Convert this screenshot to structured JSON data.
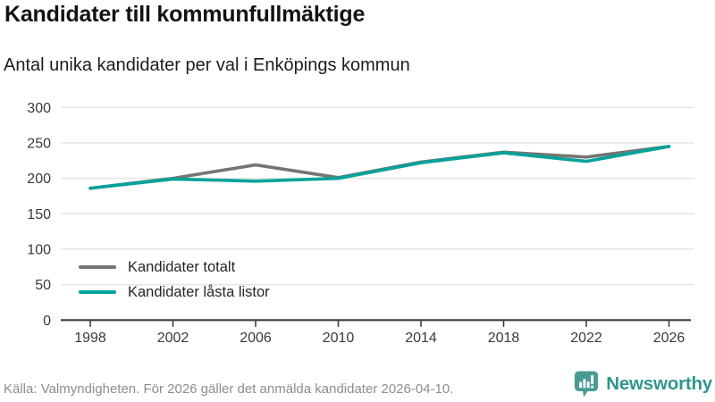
{
  "header": {
    "title": "Kandidater till kommunfullmäktige",
    "subtitle": "Antal unika kandidater per val i Enköpings kommun"
  },
  "chart_data": {
    "type": "line",
    "x": [
      1998,
      2002,
      2006,
      2010,
      2014,
      2018,
      2022,
      2026
    ],
    "series": [
      {
        "name": "Kandidater totalt",
        "color": "#757575",
        "values": [
          186,
          200,
          219,
          201,
          223,
          237,
          230,
          245
        ]
      },
      {
        "name": "Kandidater låsta listor",
        "color": "#00a39b",
        "values": [
          186,
          199,
          196,
          200,
          222,
          236,
          224,
          245
        ]
      }
    ],
    "ylim": [
      0,
      300
    ],
    "yticks": [
      0,
      50,
      100,
      150,
      200,
      250,
      300
    ],
    "grid": true,
    "legend_position": "inside-bottom-left"
  },
  "footer": {
    "source": "Källa: Valmyndigheten. För 2026 gäller det anmälda kandidater 2026-04-10.",
    "brand": "Newsworthy"
  },
  "colors": {
    "grid": "#e4e4e4",
    "axis": "#3c3c3c",
    "tick_text": "#3a3a3a",
    "brand_text": "#2f968e",
    "brand_icon": "#4b9b94",
    "muted_text": "#8d8d8d"
  }
}
